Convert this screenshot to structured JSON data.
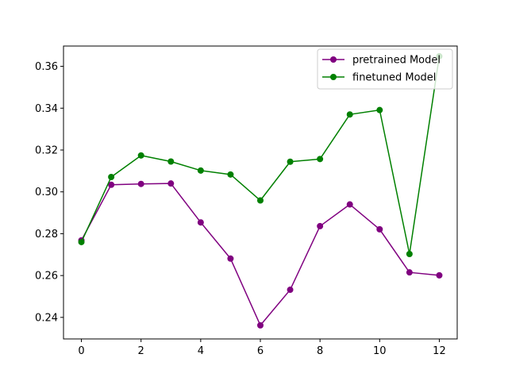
{
  "chart_data": {
    "type": "line",
    "title": "",
    "xlabel": "",
    "ylabel": "",
    "xlim": [
      -0.6,
      12.6
    ],
    "ylim": [
      0.2297,
      0.3697
    ],
    "xticks": [
      0,
      2,
      4,
      6,
      8,
      10,
      12
    ],
    "yticks": [
      0.24,
      0.26,
      0.28,
      0.3,
      0.32,
      0.34,
      0.36
    ],
    "grid": false,
    "legend_position": "top-right",
    "x": [
      0,
      1,
      2,
      3,
      4,
      5,
      6,
      7,
      8,
      9,
      10,
      11,
      12
    ],
    "series": [
      {
        "name": "pretrained Model",
        "color": "#800080",
        "values": [
          0.2768,
          0.3034,
          0.3038,
          0.304,
          0.2854,
          0.2681,
          0.2362,
          0.2532,
          0.2836,
          0.294,
          0.2821,
          0.2615,
          0.2601
        ]
      },
      {
        "name": "finetuned Model",
        "color": "#008000",
        "values": [
          0.276,
          0.3071,
          0.3174,
          0.3145,
          0.3102,
          0.3083,
          0.2959,
          0.3144,
          0.3157,
          0.337,
          0.3391,
          0.2703,
          0.3648
        ]
      }
    ]
  }
}
